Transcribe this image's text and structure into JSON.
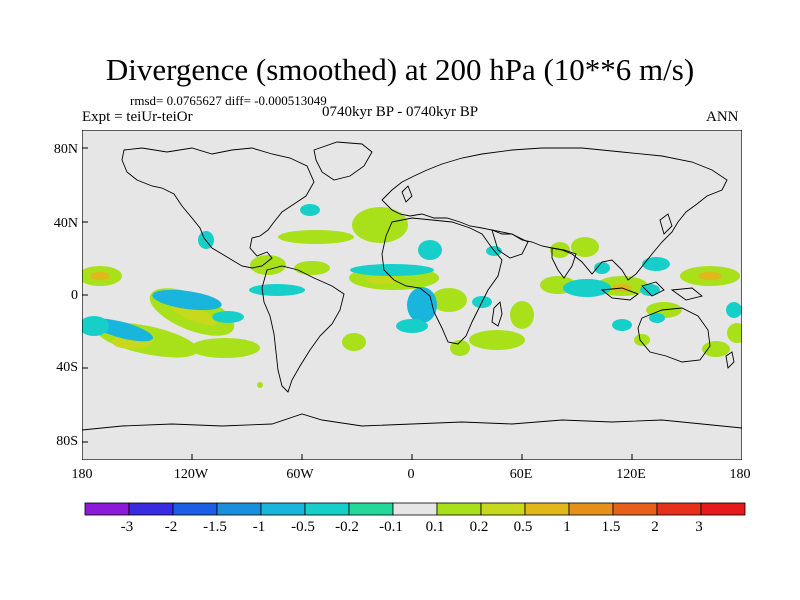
{
  "title": "Divergence (smoothed) at 200 hPa (10**6 m/s)",
  "stats_text": "rmsd= 0.0765627 diff= -0.000513049",
  "experiment": "Expt = teiUr-teiOr",
  "period": "0740kyr BP - 0740kyr BP",
  "season": "ANN",
  "lat_ticks": [
    "80N",
    "40N",
    "0",
    "40S",
    "80S"
  ],
  "lon_ticks": [
    "180",
    "120W",
    "60W",
    "0",
    "60E",
    "120E",
    "180"
  ],
  "colorbar": {
    "labels": [
      "-3",
      "-2",
      "-1.5",
      "-1",
      "-0.5",
      "-0.2",
      "-0.1",
      "0.1",
      "0.2",
      "0.5",
      "1",
      "1.5",
      "2",
      "3"
    ],
    "colors": [
      "#8b1ad9",
      "#3a2be0",
      "#1a5ee6",
      "#1a8fe0",
      "#19b5dc",
      "#17cfc9",
      "#22d99a",
      "#e6e6e6",
      "#a8e01a",
      "#c8d81c",
      "#e0b81a",
      "#e6901a",
      "#e6601a",
      "#e6301a",
      "#e61a1a"
    ]
  },
  "map_background_color": "#e6e6e6",
  "coastline_color": "#000000"
}
